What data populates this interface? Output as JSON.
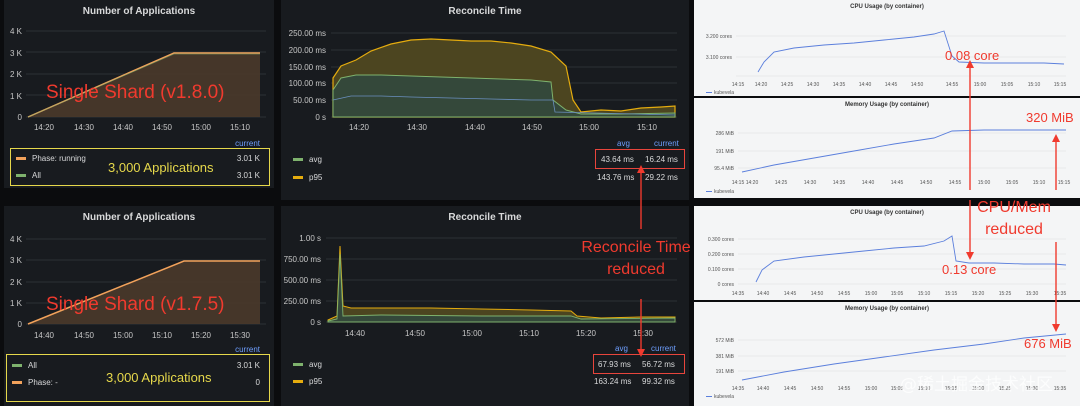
{
  "apps_top": {
    "title": "Number of Applications",
    "y_ticks": [
      "4 K",
      "3 K",
      "2 K",
      "1 K",
      "0"
    ],
    "x_ticks": [
      "14:20",
      "14:30",
      "14:40",
      "14:50",
      "15:00",
      "15:10"
    ],
    "legend_header": "current",
    "legend": [
      {
        "label": "Phase: running",
        "value": "3.01 K",
        "color": "#f2a25b"
      },
      {
        "label": "All",
        "value": "3.01 K",
        "color": "#7eb26d"
      }
    ],
    "overlay_label": "Single Shard (v1.8.0)",
    "apps_note": "3,000 Applications"
  },
  "apps_bottom": {
    "title": "Number of Applications",
    "y_ticks": [
      "4 K",
      "3 K",
      "2 K",
      "1 K",
      "0"
    ],
    "x_ticks": [
      "14:40",
      "14:50",
      "15:00",
      "15:10",
      "15:20",
      "15:30"
    ],
    "legend_header": "current",
    "legend": [
      {
        "label": "All",
        "value": "3.01 K",
        "color": "#7eb26d"
      },
      {
        "label": "Phase: -",
        "value": "0",
        "color": "#f2a25b"
      }
    ],
    "overlay_label": "Single Shard (v1.7.5)",
    "apps_note": "3,000 Applications"
  },
  "reconcile_top": {
    "title": "Reconcile Time",
    "y_ticks": [
      "250.00 ms",
      "200.00 ms",
      "150.00 ms",
      "100.00 ms",
      "50.00 ms",
      "0 s"
    ],
    "x_ticks": [
      "14:20",
      "14:30",
      "14:40",
      "14:50",
      "15:00",
      "15:10"
    ],
    "legend_avg_header": "avg",
    "legend_cur_header": "current",
    "rows": [
      {
        "label": "avg",
        "avg": "43.64 ms",
        "current": "16.24 ms",
        "color": "#7eb26d"
      },
      {
        "label": "p95",
        "avg": "143.76 ms",
        "current": "29.22 ms",
        "color": "#e5ac0e"
      }
    ]
  },
  "reconcile_bottom": {
    "title": "Reconcile Time",
    "y_ticks": [
      "1.00 s",
      "750.00 ms",
      "500.00 ms",
      "250.00 ms",
      "0 s"
    ],
    "x_ticks": [
      "14:40",
      "14:50",
      "15:00",
      "15:10",
      "15:20",
      "15:30"
    ],
    "legend_avg_header": "avg",
    "legend_cur_header": "current",
    "rows": [
      {
        "label": "avg",
        "avg": "67.93 ms",
        "current": "56.72 ms",
        "color": "#7eb26d"
      },
      {
        "label": "p95",
        "avg": "163.24 ms",
        "current": "99.32 ms",
        "color": "#e5ac0e"
      }
    ]
  },
  "reconcile_note_line1": "Reconcile Time",
  "reconcile_note_line2": "reduced",
  "cpu_top": {
    "title": "CPU Usage (by container)",
    "y_ticks": [
      "3.200 cores",
      "3.100 cores"
    ],
    "x_ticks": [
      "14:15",
      "14:20",
      "14:25",
      "14:30",
      "14:35",
      "14:40",
      "14:45",
      "14:50",
      "14:55",
      "15:00",
      "15:05",
      "15:10",
      "15:15"
    ],
    "legend": "kubevela",
    "value_note": "0.08 core"
  },
  "mem_top": {
    "title": "Memory Usage (by container)",
    "y_ticks": [
      "286 MiB",
      "191 MiB",
      "95.4 MiB"
    ],
    "x_ticks": [
      "14:15",
      "14:20",
      "14:25",
      "14:30",
      "14:35",
      "14:40",
      "14:45",
      "14:50",
      "14:55",
      "15:00",
      "15:05",
      "15:10",
      "15:15"
    ],
    "legend": "kubevela",
    "value_note": "320 MiB"
  },
  "cpu_bottom": {
    "title": "CPU Usage (by container)",
    "y_ticks": [
      "0.300 cores",
      "0.200 cores",
      "0.100 cores",
      "0 cores"
    ],
    "x_ticks": [
      "14:35",
      "14:40",
      "14:45",
      "14:50",
      "14:55",
      "15:00",
      "15:05",
      "15:10",
      "15:15",
      "15:20",
      "15:25",
      "15:30",
      "15:35"
    ],
    "legend": "kubevela",
    "value_note": "0.13 core"
  },
  "mem_bottom": {
    "title": "Memory Usage (by container)",
    "y_ticks": [
      "572 MiB",
      "381 MiB",
      "191 MiB"
    ],
    "x_ticks": [
      "14:35",
      "14:40",
      "14:45",
      "14:50",
      "14:55",
      "15:00",
      "15:05",
      "15:10",
      "15:15",
      "15:20",
      "15:25",
      "15:30",
      "15:35"
    ],
    "legend": "kubevela",
    "value_note": "676 MiB"
  },
  "cpu_mem_note_line1": "CPU/Mem",
  "cpu_mem_note_line2": "reduced",
  "watermark": "@稀土掘金技术社区",
  "colors": {
    "red": "#f03a2e",
    "yellow": "#e6d84b",
    "green": "#7eb26d",
    "orange": "#f2a25b",
    "gold": "#e5ac0e",
    "blue": "#5b7fdc"
  }
}
